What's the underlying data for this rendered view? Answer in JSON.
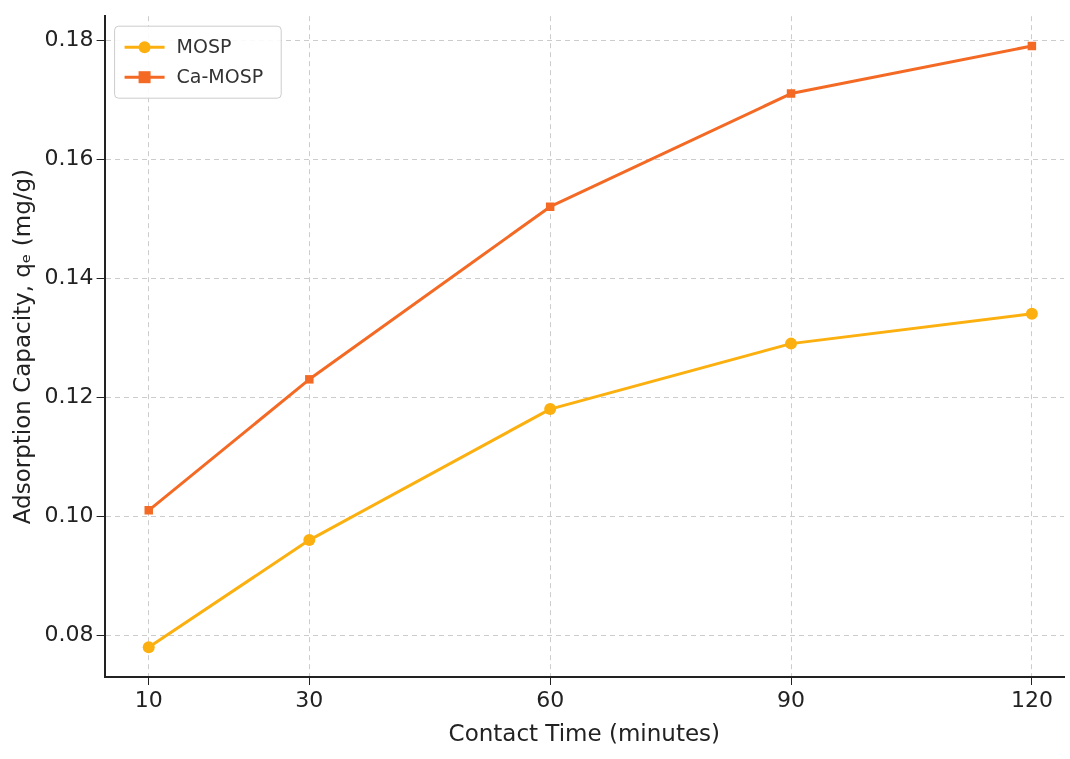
{
  "chart_data": {
    "type": "line",
    "xlabel": "Contact Time (minutes)",
    "ylabel": "Adsorption Capacity, qₑ (mg/g)",
    "x": [
      10,
      30,
      60,
      90,
      120
    ],
    "series": [
      {
        "name": "MOSP",
        "color": "#fbb010",
        "marker": "circle",
        "values": [
          0.078,
          0.096,
          0.118,
          0.129,
          0.134
        ]
      },
      {
        "name": "Ca-MOSP",
        "color": "#f46a25",
        "marker": "square",
        "values": [
          0.101,
          0.123,
          0.152,
          0.171,
          0.179
        ]
      }
    ],
    "xlim": [
      4.5,
      124
    ],
    "xticks": [
      10,
      30,
      60,
      90,
      120
    ],
    "ylim": [
      0.073,
      0.184
    ],
    "yticks": [
      {
        "value": 0.08,
        "label": "0.08"
      },
      {
        "value": 0.1,
        "label": "0.10"
      },
      {
        "value": 0.12,
        "label": "0.12"
      },
      {
        "value": 0.14,
        "label": "0.14"
      },
      {
        "value": 0.16,
        "label": "0.16"
      },
      {
        "value": 0.18,
        "label": "0.18"
      }
    ],
    "grid": true,
    "legend": "top left",
    "line_style": "solid"
  }
}
